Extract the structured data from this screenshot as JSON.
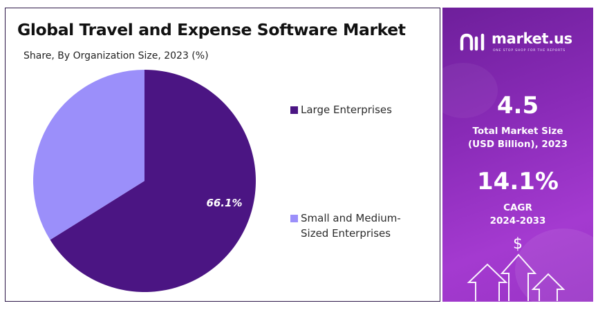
{
  "chart_data": {
    "type": "pie",
    "title": "Global Travel and Expense Software Market",
    "subtitle": "Share, By Organization Size, 2023 (%)",
    "slices": [
      {
        "label": "Large Enterprises",
        "value": 66.1,
        "color": "#4b1583",
        "data_label": "66.1%"
      },
      {
        "label": "Small and Medium-Sized Enterprises",
        "value": 33.9,
        "color": "#9b8ffa",
        "data_label": ""
      }
    ],
    "legend_placement": "right"
  },
  "legend": {
    "items": [
      {
        "line1": "Large Enterprises",
        "line2": ""
      },
      {
        "line1": "Small and Medium-",
        "line2": "Sized Enterprises"
      }
    ]
  },
  "side_panel": {
    "logo_text": "market.us",
    "logo_tagline": "ONE STOP SHOP FOR THE REPORTS",
    "market_size_value": "4.5",
    "market_size_label_line1": "Total Market Size",
    "market_size_label_line2": "(USD Billion), 2023",
    "cagr_value": "14.1%",
    "cagr_label_line1": "CAGR",
    "cagr_label_line2": "2024-2033",
    "currency_symbol": "$",
    "gradient_colors": [
      "#6e1f9b",
      "#a43ad0"
    ]
  }
}
